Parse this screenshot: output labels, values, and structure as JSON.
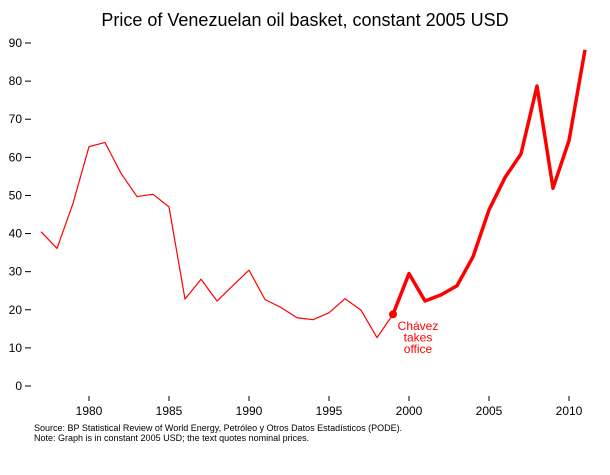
{
  "chart_data": {
    "type": "line",
    "title": "Price of Venezuelan oil basket, constant 2005 USD",
    "xlabel": "",
    "ylabel": "",
    "xlim": [
      1977,
      2011
    ],
    "ylim": [
      0,
      90
    ],
    "x_ticks": [
      "1980",
      "1985",
      "1990",
      "1995",
      "2000",
      "2005",
      "2010"
    ],
    "y_ticks": [
      "0",
      "10",
      "20",
      "30",
      "40",
      "50",
      "60",
      "70",
      "80",
      "90"
    ],
    "grid": false,
    "color": "#ff0000",
    "x": [
      1977,
      1978,
      1979,
      1980,
      1981,
      1982,
      1983,
      1984,
      1985,
      1986,
      1987,
      1988,
      1989,
      1990,
      1991,
      1992,
      1993,
      1994,
      1995,
      1996,
      1997,
      1998,
      1999,
      2000,
      2001,
      2002,
      2003,
      2004,
      2005,
      2006,
      2007,
      2008,
      2009,
      2010,
      2011
    ],
    "values": [
      40.5,
      36.1,
      47.9,
      62.8,
      63.9,
      55.8,
      49.7,
      50.3,
      47.0,
      22.8,
      28.0,
      22.3,
      26.4,
      30.4,
      22.7,
      20.6,
      17.9,
      17.4,
      19.2,
      22.9,
      19.9,
      12.7,
      18.8,
      29.5,
      22.3,
      23.9,
      26.3,
      33.9,
      46.2,
      54.7,
      60.9,
      78.7,
      51.9,
      64.4,
      88.2
    ],
    "highlight_from": 1999,
    "annotation": {
      "year": 1999,
      "lines": [
        "Chávez",
        "takes",
        "office"
      ]
    },
    "notes": [
      "Source: BP Statistical Review of World Energy, Petróleo y Otros Datos Estadísticos (PODE).",
      "Note: Graph is in constant 2005 USD; the text quotes nominal prices."
    ]
  }
}
